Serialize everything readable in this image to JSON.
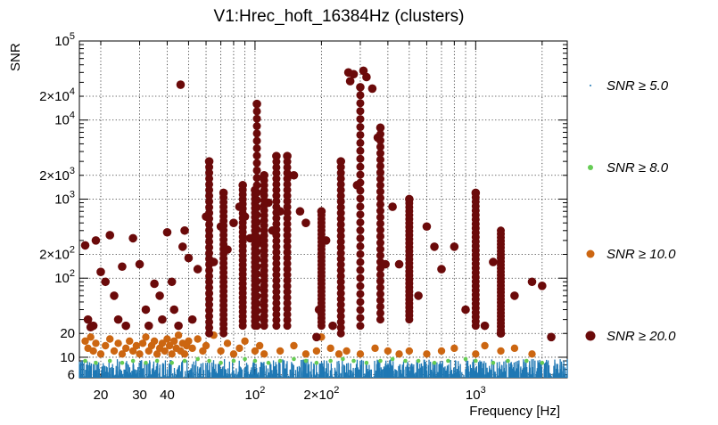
{
  "chart_data": {
    "type": "scatter",
    "title": "V1:Hrec_hoft_16384Hz (clusters)",
    "xlabel": "Frequency [Hz]",
    "ylabel": "SNR",
    "xscale": "log",
    "yscale": "log",
    "xlim": [
      16,
      2600
    ],
    "ylim": [
      5.5,
      100000
    ],
    "grid": true,
    "legend_position": "right",
    "x_ticks": [
      {
        "value": 20,
        "label": "20"
      },
      {
        "value": 30,
        "label": "30"
      },
      {
        "value": 40,
        "label": "40"
      },
      {
        "value": 100,
        "label": "10^2"
      },
      {
        "value": 200,
        "label": "2×10^2"
      },
      {
        "value": 1000,
        "label": "10^3"
      }
    ],
    "y_ticks": [
      {
        "value": 6,
        "label": "6"
      },
      {
        "value": 10,
        "label": "10"
      },
      {
        "value": 20,
        "label": "20"
      },
      {
        "value": 100,
        "label": "10^2"
      },
      {
        "value": 200,
        "label": "2×10^2"
      },
      {
        "value": 1000,
        "label": "10^3"
      },
      {
        "value": 2000,
        "label": "2×10^3"
      },
      {
        "value": 10000,
        "label": "10^4"
      },
      {
        "value": 20000,
        "label": "2×10^4"
      },
      {
        "value": 100000,
        "label": "10^5"
      }
    ],
    "series": [
      {
        "name": "SNR ≥ 5.0",
        "color": "#1f78b4",
        "marker": "dot",
        "note": "dense band",
        "band": {
          "ymin": 5.5,
          "ymax": 9.5
        }
      },
      {
        "name": "SNR ≥ 8.0",
        "color": "#66cc55",
        "marker": "small",
        "points": [
          [
            17,
            9
          ],
          [
            19,
            8.5
          ],
          [
            22,
            9
          ],
          [
            25,
            8.5
          ],
          [
            28,
            9
          ],
          [
            32,
            8.5
          ],
          [
            36,
            9
          ],
          [
            42,
            8.5
          ],
          [
            48,
            9
          ],
          [
            55,
            9.5
          ],
          [
            62,
            9
          ],
          [
            70,
            8.5
          ],
          [
            80,
            9
          ],
          [
            90,
            9.5
          ],
          [
            100,
            9
          ],
          [
            115,
            8.5
          ],
          [
            130,
            9
          ],
          [
            150,
            9.5
          ],
          [
            170,
            9
          ],
          [
            190,
            8.5
          ],
          [
            220,
            9
          ],
          [
            250,
            9.5
          ],
          [
            280,
            9
          ],
          [
            320,
            8.5
          ],
          [
            370,
            9
          ],
          [
            420,
            9.5
          ],
          [
            480,
            9
          ],
          [
            550,
            9
          ],
          [
            650,
            8.5
          ],
          [
            750,
            9
          ],
          [
            900,
            9.5
          ],
          [
            1000,
            9
          ],
          [
            1200,
            8.5
          ],
          [
            1400,
            9
          ],
          [
            1700,
            9
          ],
          [
            2000,
            8.5
          ]
        ]
      },
      {
        "name": "SNR ≥ 10.0",
        "color": "#cc6611",
        "marker": "medium",
        "points": [
          [
            17,
            16
          ],
          [
            17.5,
            13
          ],
          [
            18,
            18
          ],
          [
            18.5,
            12
          ],
          [
            19,
            15
          ],
          [
            20,
            11
          ],
          [
            21,
            14
          ],
          [
            22,
            17
          ],
          [
            23,
            12
          ],
          [
            24,
            15
          ],
          [
            25,
            11
          ],
          [
            26,
            13
          ],
          [
            27,
            16
          ],
          [
            28,
            12
          ],
          [
            29,
            14
          ],
          [
            30,
            11
          ],
          [
            31,
            15
          ],
          [
            32,
            18
          ],
          [
            33,
            12
          ],
          [
            34,
            14
          ],
          [
            35,
            16
          ],
          [
            36,
            11
          ],
          [
            37,
            13
          ],
          [
            38,
            15
          ],
          [
            39,
            12
          ],
          [
            40,
            17
          ],
          [
            41,
            14
          ],
          [
            42,
            11
          ],
          [
            43,
            16
          ],
          [
            44,
            13
          ],
          [
            45,
            19
          ],
          [
            46,
            12
          ],
          [
            47,
            15
          ],
          [
            48,
            11
          ],
          [
            49,
            14
          ],
          [
            50,
            16
          ],
          [
            52,
            13
          ],
          [
            55,
            17
          ],
          [
            58,
            12
          ],
          [
            60,
            14
          ],
          [
            65,
            19
          ],
          [
            70,
            12
          ],
          [
            75,
            15
          ],
          [
            80,
            11
          ],
          [
            85,
            13
          ],
          [
            90,
            16
          ],
          [
            100,
            12
          ],
          [
            105,
            14
          ],
          [
            110,
            11
          ],
          [
            130,
            12
          ],
          [
            150,
            14
          ],
          [
            170,
            11
          ],
          [
            190,
            12
          ],
          [
            200,
            18
          ],
          [
            220,
            13
          ],
          [
            240,
            11
          ],
          [
            260,
            12
          ],
          [
            300,
            11
          ],
          [
            350,
            13
          ],
          [
            400,
            12
          ],
          [
            450,
            11
          ],
          [
            500,
            12
          ],
          [
            600,
            11
          ],
          [
            700,
            12
          ],
          [
            800,
            13
          ],
          [
            1000,
            11
          ],
          [
            1100,
            14
          ],
          [
            1300,
            12
          ],
          [
            1500,
            13
          ],
          [
            1800,
            11
          ]
        ]
      },
      {
        "name": "SNR ≥ 20.0",
        "color": "#6b0a0a",
        "marker": "large",
        "points": [
          [
            17,
            260
          ],
          [
            17.5,
            30
          ],
          [
            18,
            24
          ],
          [
            18.5,
            25
          ],
          [
            19,
            300
          ],
          [
            20,
            120
          ],
          [
            21,
            90
          ],
          [
            22,
            350
          ],
          [
            23,
            60
          ],
          [
            24,
            30
          ],
          [
            25,
            140
          ],
          [
            26,
            25
          ],
          [
            28,
            320
          ],
          [
            30,
            150
          ],
          [
            32,
            40
          ],
          [
            33,
            25
          ],
          [
            35,
            85
          ],
          [
            37,
            60
          ],
          [
            38,
            30
          ],
          [
            40,
            380
          ],
          [
            42,
            90
          ],
          [
            43,
            40
          ],
          [
            45,
            25
          ],
          [
            46,
            28000
          ],
          [
            47,
            250
          ],
          [
            48,
            400
          ],
          [
            50,
            180
          ],
          [
            52,
            30
          ],
          [
            55,
            130
          ],
          [
            60,
            600
          ],
          [
            62,
            3000
          ],
          [
            65,
            160
          ],
          [
            70,
            450
          ],
          [
            72,
            1200
          ],
          [
            75,
            230
          ],
          [
            80,
            500
          ],
          [
            85,
            800
          ],
          [
            88,
            1500
          ],
          [
            90,
            600
          ],
          [
            95,
            320
          ],
          [
            100,
            1300
          ],
          [
            102,
            16000
          ],
          [
            105,
            300
          ],
          [
            110,
            2000
          ],
          [
            115,
            900
          ],
          [
            120,
            400
          ],
          [
            125,
            3500
          ],
          [
            130,
            700
          ],
          [
            140,
            3500
          ],
          [
            150,
            2000
          ],
          [
            160,
            700
          ],
          [
            170,
            500
          ],
          [
            190,
            18
          ],
          [
            195,
            40
          ],
          [
            200,
            700
          ],
          [
            210,
            300
          ],
          [
            225,
            25
          ],
          [
            245,
            3000
          ],
          [
            265,
            40000
          ],
          [
            270,
            31000
          ],
          [
            280,
            38000
          ],
          [
            290,
            1500
          ],
          [
            300,
            26000
          ],
          [
            310,
            42000
          ],
          [
            320,
            35000
          ],
          [
            340,
            25000
          ],
          [
            360,
            6000
          ],
          [
            370,
            8000
          ],
          [
            390,
            150
          ],
          [
            420,
            800
          ],
          [
            450,
            150
          ],
          [
            500,
            1000
          ],
          [
            550,
            60
          ],
          [
            600,
            450
          ],
          [
            650,
            250
          ],
          [
            700,
            130
          ],
          [
            800,
            250
          ],
          [
            900,
            40
          ],
          [
            1000,
            1200
          ],
          [
            1100,
            25
          ],
          [
            1200,
            160
          ],
          [
            1300,
            20
          ],
          [
            1500,
            60
          ],
          [
            1800,
            90
          ],
          [
            2000,
            80
          ],
          [
            2200,
            18
          ]
        ]
      }
    ]
  }
}
